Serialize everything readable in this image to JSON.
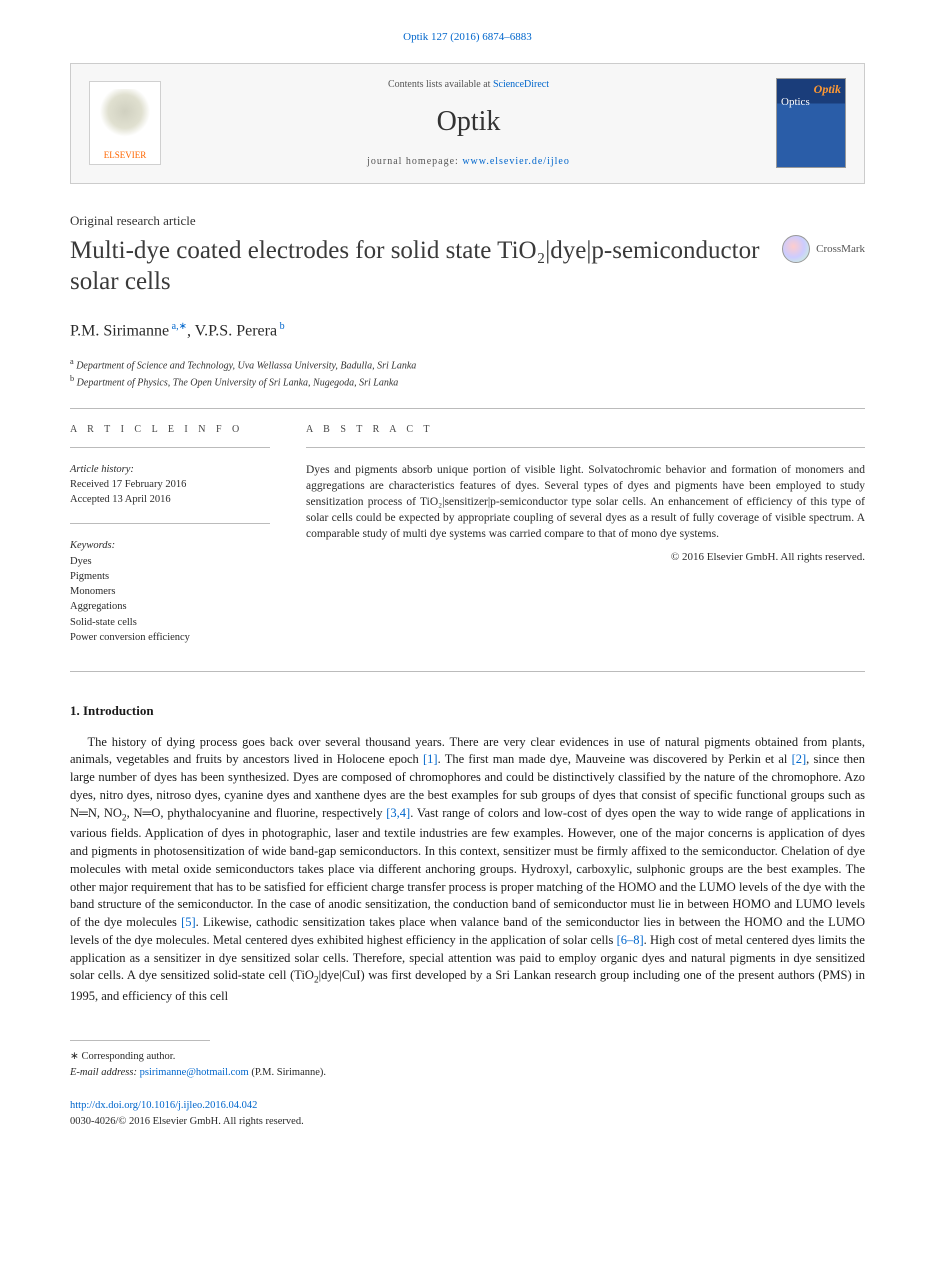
{
  "citation": "Optik 127 (2016) 6874–6883",
  "banner": {
    "contents_prefix": "Contents lists available at ",
    "contents_link": "ScienceDirect",
    "journal_name": "Optik",
    "homepage_prefix": "journal homepage: ",
    "homepage_url": "www.elsevier.de/ijleo",
    "publisher_name": "ELSEVIER"
  },
  "article_type": "Original research article",
  "title": "Multi-dye coated electrodes for solid state TiO₂|dye|p-semiconductor solar cells",
  "crossmark_label": "CrossMark",
  "authors_html": "P.M. Sirimanne<sup> a,</sup><sup>∗</sup>, V.P.S. Perera<sup> b</sup>",
  "affiliations": [
    {
      "marker": "a",
      "text": "Department of Science and Technology, Uva Wellassa University, Badulla, Sri Lanka"
    },
    {
      "marker": "b",
      "text": "Department of Physics, The Open University of Sri Lanka, Nugegoda, Sri Lanka"
    }
  ],
  "article_info": {
    "heading": "A R T I C L E   I N F O",
    "history_label": "Article history:",
    "received": "Received 17 February 2016",
    "accepted": "Accepted 13 April 2016",
    "keywords_label": "Keywords:",
    "keywords": [
      "Dyes",
      "Pigments",
      "Monomers",
      "Aggregations",
      "Solid-state cells",
      "Power conversion efficiency"
    ]
  },
  "abstract": {
    "heading": "A B S T R A C T",
    "text": "Dyes and pigments absorb unique portion of visible light. Solvatochromic behavior and formation of monomers and aggregations are characteristics features of dyes. Several types of dyes and pigments have been employed to study sensitization process of TiO₂|sensitizer|p-semiconductor type solar cells. An enhancement of efficiency of this type of solar cells could be expected by appropriate coupling of several dyes as a result of fully coverage of visible spectrum. A comparable study of multi dye systems was carried compare to that of mono dye systems.",
    "copyright": "© 2016 Elsevier GmbH. All rights reserved."
  },
  "section": {
    "heading": "1.  Introduction",
    "body_html": "The history of dying process goes back over several thousand years. There are very clear evidences in use of natural pigments obtained from plants, animals, vegetables and fruits by ancestors lived in Holocene epoch <a class=\"ref\" data-name=\"citation-link\" data-interactable=\"true\">[1]</a>. The first man made dye, Mauveine was discovered by Perkin et al <a class=\"ref\" data-name=\"citation-link\" data-interactable=\"true\">[2]</a>, since then large number of dyes has been synthesized. Dyes are composed of chromophores and could be distinctively classified by the nature of the chromophore. Azo dyes, nitro dyes, nitroso dyes, cyanine dyes and xanthene dyes are the best examples for sub groups of dyes that consist of specific functional groups such as N═N, NO<sub>2</sub>, N═O, phythalocyanine and fluorine, respectively <a class=\"ref\" data-name=\"citation-link\" data-interactable=\"true\">[3,4]</a>. Vast range of colors and low-cost of dyes open the way to wide range of applications in various fields. Application of dyes in photographic, laser and textile industries are few examples. However, one of the major concerns is application of dyes and pigments in photosensitization of wide band-gap semiconductors. In this context, sensitizer must be firmly affixed to the semiconductor. Chelation of dye molecules with metal oxide semiconductors takes place via different anchoring groups. Hydroxyl, carboxylic, sulphonic groups are the best examples. The other major requirement that has to be satisfied for efficient charge transfer process is proper matching of the HOMO and the LUMO levels of the dye with the band structure of the semiconductor. In the case of anodic sensitization, the conduction band of semiconductor must lie in between HOMO and LUMO levels of the dye molecules <a class=\"ref\" data-name=\"citation-link\" data-interactable=\"true\">[5]</a>. Likewise, cathodic sensitization takes place when valance band of the semiconductor lies in between the HOMO and the LUMO levels of the dye molecules. Metal centered dyes exhibited highest efficiency in the application of solar cells <a class=\"ref\" data-name=\"citation-link\" data-interactable=\"true\">[6–8]</a>. High cost of metal centered dyes limits the application as a sensitizer in dye sensitized solar cells. Therefore, special attention was paid to employ organic dyes and natural pigments in dye sensitized solar cells. A dye sensitized solid-state cell (TiO<sub>2</sub>|dye|CuI) was first developed by a Sri Lankan research group including one of the present authors (PMS) in 1995, and efficiency of this cell"
  },
  "footer": {
    "corresponding_marker": "∗",
    "corresponding_label": "Corresponding author.",
    "email_label": "E-mail address:",
    "email": "psirimanne@hotmail.com",
    "email_owner": "(P.M. Sirimanne).",
    "doi_url": "http://dx.doi.org/10.1016/j.ijleo.2016.04.042",
    "issn_line": "0030-4026/© 2016 Elsevier GmbH. All rights reserved."
  },
  "colors": {
    "link": "#0066cc",
    "text": "#1a1a1a",
    "muted": "#555555",
    "rule": "#bbbbbb",
    "banner_bg": "#f7f7f7",
    "elsevier_orange": "#ff6600"
  }
}
